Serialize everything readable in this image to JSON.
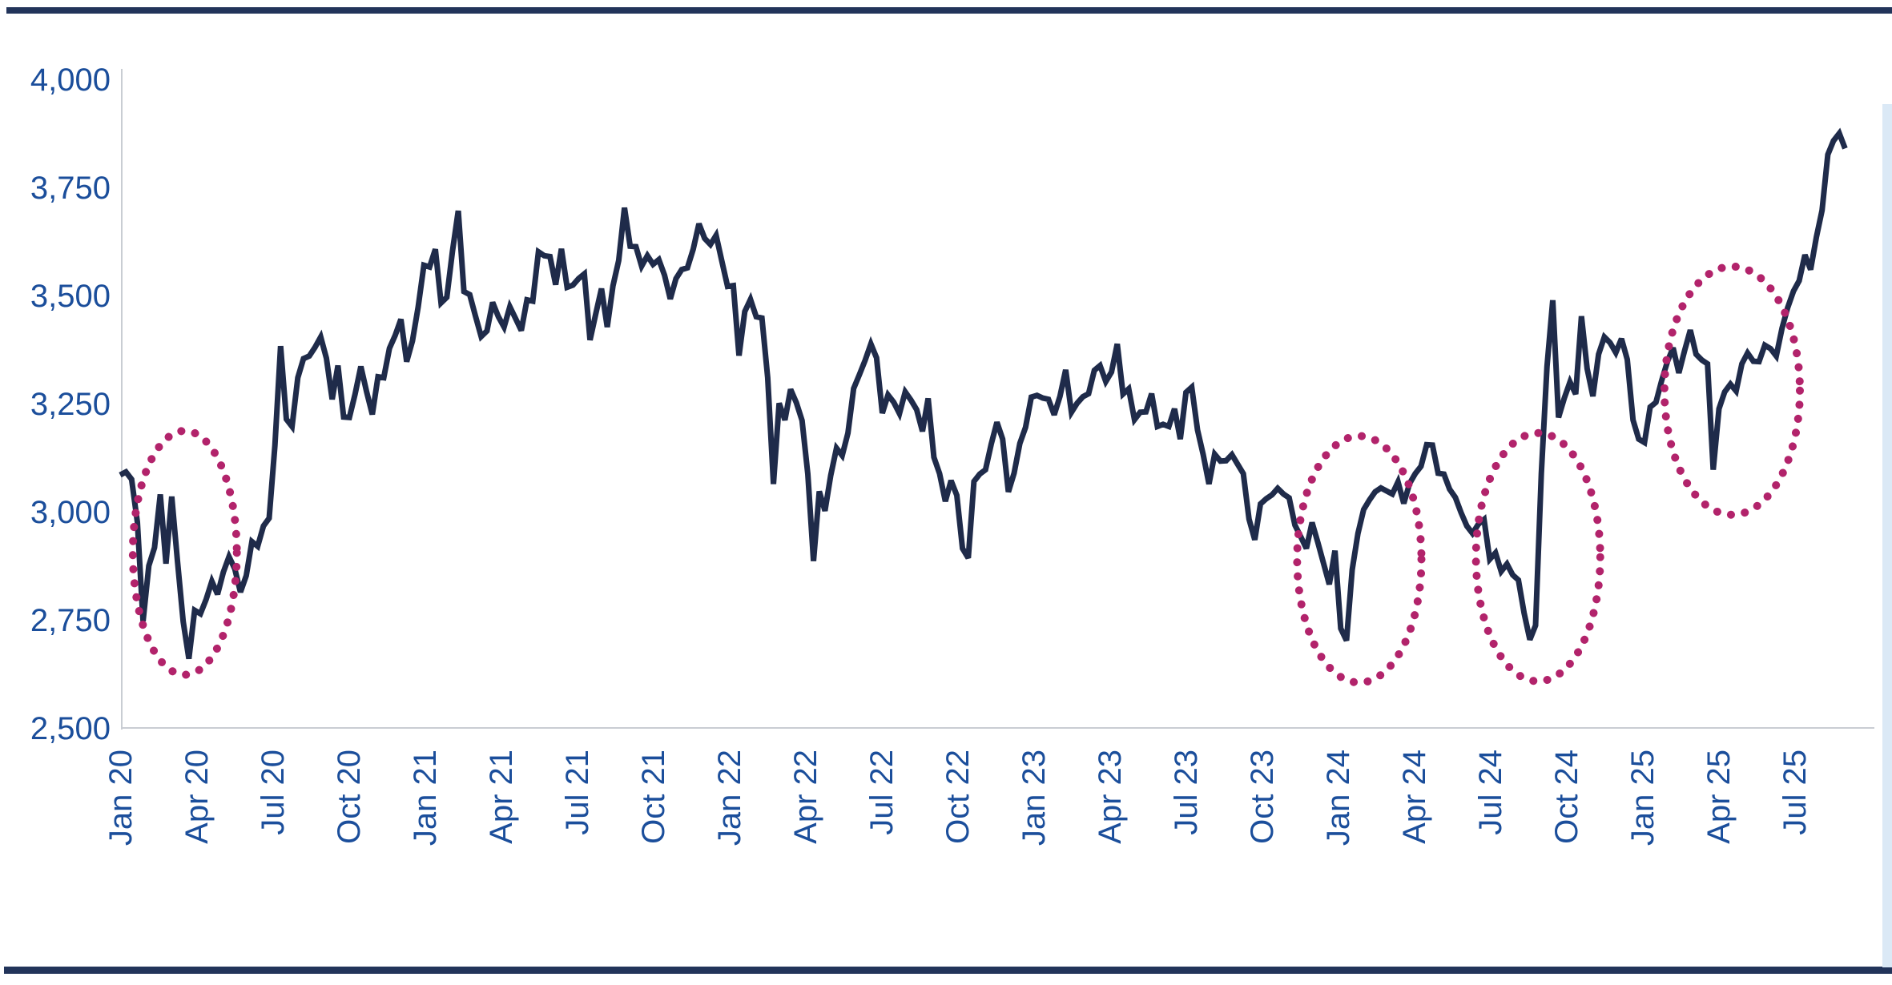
{
  "page": {
    "top_bar_color": "#22345a",
    "bottom_bar_color": "#22345a",
    "right_strip_color": "#dbe9f6",
    "background": "#ffffff"
  },
  "chart_data": {
    "type": "line",
    "title": "",
    "xlabel": "",
    "ylabel": "",
    "grid": false,
    "legend_position": "none",
    "axis_line_color": "#c9cdd3",
    "tick_label_color": "#1b4e9b",
    "ylim": [
      2500,
      4000
    ],
    "y_ticks": [
      4000,
      3750,
      3500,
      3250,
      3000,
      2750,
      2500
    ],
    "y_tick_labels": [
      "4,000",
      "3,750",
      "3,500",
      "3,250",
      "3,000",
      "2,750",
      "2,500"
    ],
    "x_tick_labels": [
      "Jan 20",
      "Apr 20",
      "Jul 20",
      "Oct 20",
      "Jan 21",
      "Apr 21",
      "Jul 21",
      "Oct 21",
      "Jan 22",
      "Apr 22",
      "Jul 22",
      "Oct 22",
      "Jan 23",
      "Apr 23",
      "Jul 23",
      "Oct 23",
      "Jan 24",
      "Apr 24",
      "Jul 24",
      "Oct 24",
      "Jan 25",
      "Apr 25",
      "Jul 25"
    ],
    "x_tick_months": [
      0,
      3,
      6,
      9,
      12,
      15,
      18,
      21,
      24,
      27,
      30,
      33,
      36,
      39,
      42,
      45,
      48,
      51,
      54,
      57,
      60,
      63,
      66
    ],
    "x_total_months": 68,
    "series": [
      {
        "name": "equity-index-level",
        "color": "#1f2b4a",
        "sampling": "weekly",
        "values": [
          3085,
          3092,
          3075,
          2976,
          2747,
          2875,
          2917,
          3040,
          2880,
          3035,
          2887,
          2746,
          2660,
          2772,
          2764,
          2797,
          2839,
          2809,
          2860,
          2896,
          2868,
          2814,
          2852,
          2931,
          2920,
          2967,
          2985,
          3153,
          3383,
          3214,
          3197,
          3310,
          3354,
          3360,
          3380,
          3404,
          3355,
          3260,
          3338,
          3219,
          3218,
          3272,
          3336,
          3278,
          3225,
          3312,
          3310,
          3378,
          3408,
          3445,
          3347,
          3395,
          3473,
          3570,
          3566,
          3607,
          3483,
          3496,
          3603,
          3696,
          3509,
          3502,
          3453,
          3405,
          3418,
          3484,
          3451,
          3427,
          3474,
          3447,
          3419,
          3490,
          3487,
          3601,
          3592,
          3590,
          3525,
          3608,
          3519,
          3524,
          3539,
          3550,
          3397,
          3458,
          3516,
          3427,
          3522,
          3581,
          3703,
          3614,
          3613,
          3568,
          3592,
          3572,
          3583,
          3547,
          3492,
          3539,
          3560,
          3564,
          3607,
          3666,
          3632,
          3618,
          3639,
          3579,
          3521,
          3523,
          3361,
          3463,
          3491,
          3451,
          3448,
          3310,
          3064,
          3251,
          3212,
          3283,
          3252,
          3211,
          3087,
          2886,
          3047,
          3002,
          3084,
          3147,
          3130,
          3182,
          3285,
          3317,
          3350,
          3388,
          3356,
          3228,
          3270,
          3253,
          3227,
          3277,
          3258,
          3236,
          3186,
          3262,
          3126,
          3088,
          3024,
          3072,
          3038,
          2915,
          2893,
          3070,
          3087,
          3097,
          3156,
          3207,
          3168,
          3046,
          3089,
          3158,
          3195,
          3265,
          3269,
          3263,
          3260,
          3224,
          3267,
          3328,
          3230,
          3251,
          3266,
          3273,
          3327,
          3338,
          3301,
          3323,
          3388,
          3272,
          3284,
          3213,
          3230,
          3231,
          3273,
          3197,
          3202,
          3197,
          3238,
          3168,
          3276,
          3288,
          3189,
          3132,
          3064,
          3133,
          3117,
          3118,
          3132,
          3110,
          3088,
          2983,
          2935,
          3018,
          3030,
          3039,
          3054,
          3041,
          3032,
          2969,
          2943,
          2915,
          2975,
          2929,
          2881,
          2832,
          2910,
          2730,
          2702,
          2866,
          2950,
          3005,
          3027,
          3046,
          3055,
          3048,
          3041,
          3069,
          3019,
          3065,
          3088,
          3105,
          3155,
          3154,
          3089,
          3087,
          3052,
          3033,
          2998,
          2967,
          2950,
          2971,
          2982,
          2890,
          2905,
          2862,
          2879,
          2854,
          2842,
          2766,
          2704,
          2737,
          3088,
          3336,
          3489,
          3218,
          3262,
          3300,
          3272,
          3452,
          3331,
          3267,
          3364,
          3404,
          3391,
          3368,
          3400,
          3352,
          3212,
          3168,
          3160,
          3242,
          3253,
          3303,
          3347,
          3379,
          3321,
          3372,
          3420,
          3364,
          3351,
          3342,
          3097,
          3238,
          3277,
          3295,
          3279,
          3342,
          3367,
          3348,
          3347,
          3385,
          3377,
          3360,
          3424,
          3472,
          3510,
          3534,
          3594,
          3560,
          3635,
          3697,
          3826,
          3858,
          3875,
          3840
        ]
      }
    ],
    "annotations": {
      "style": "dotted-ellipse",
      "color": "#b2236b",
      "ellipses": [
        {
          "name": "highlight-2020-covid-crash",
          "cx_month": 2.55,
          "cy_value": 2905,
          "rx_months": 2.05,
          "ry_value": 282
        },
        {
          "name": "highlight-early-2024-selloff",
          "cx_month": 48.85,
          "cy_value": 2890,
          "rx_months": 2.45,
          "ry_value": 285
        },
        {
          "name": "highlight-mid-2024-trough",
          "cx_month": 55.9,
          "cy_value": 2895,
          "rx_months": 2.45,
          "ry_value": 287
        },
        {
          "name": "highlight-april-2025-dip",
          "cx_month": 63.55,
          "cy_value": 3280,
          "rx_months": 2.67,
          "ry_value": 287
        }
      ]
    }
  }
}
